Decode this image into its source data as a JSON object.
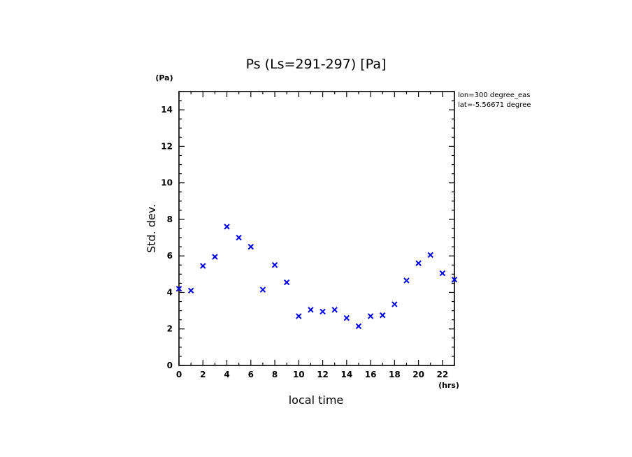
{
  "chart_data": {
    "type": "scatter",
    "title": "Ps (Ls=291-297) [Pa]",
    "xlabel": "local time",
    "ylabel": "Std. dev.",
    "x_unit": "(hrs)",
    "y_unit": "(Pa)",
    "xlim": [
      0,
      23
    ],
    "ylim": [
      0,
      15
    ],
    "x_major_ticks": [
      0,
      2,
      4,
      6,
      8,
      10,
      12,
      14,
      16,
      18,
      20,
      22
    ],
    "y_major_ticks": [
      0,
      2,
      4,
      6,
      8,
      10,
      12,
      14
    ],
    "annotations": [
      "lon=300 degree_eas",
      "lat=-5.56671 degree"
    ],
    "marker_color": "#0000ee",
    "series": [
      {
        "name": "Ps std. dev.",
        "x": [
          0,
          1,
          2,
          3,
          4,
          5,
          6,
          7,
          8,
          9,
          10,
          11,
          12,
          13,
          14,
          15,
          16,
          17,
          18,
          19,
          20,
          21,
          22,
          23
        ],
        "y": [
          4.2,
          4.1,
          5.45,
          5.95,
          7.6,
          7.0,
          6.5,
          4.15,
          5.5,
          4.55,
          2.7,
          3.05,
          2.95,
          3.05,
          2.6,
          2.15,
          2.7,
          2.75,
          3.35,
          4.65,
          5.6,
          6.05,
          5.05,
          4.7
        ]
      }
    ]
  }
}
